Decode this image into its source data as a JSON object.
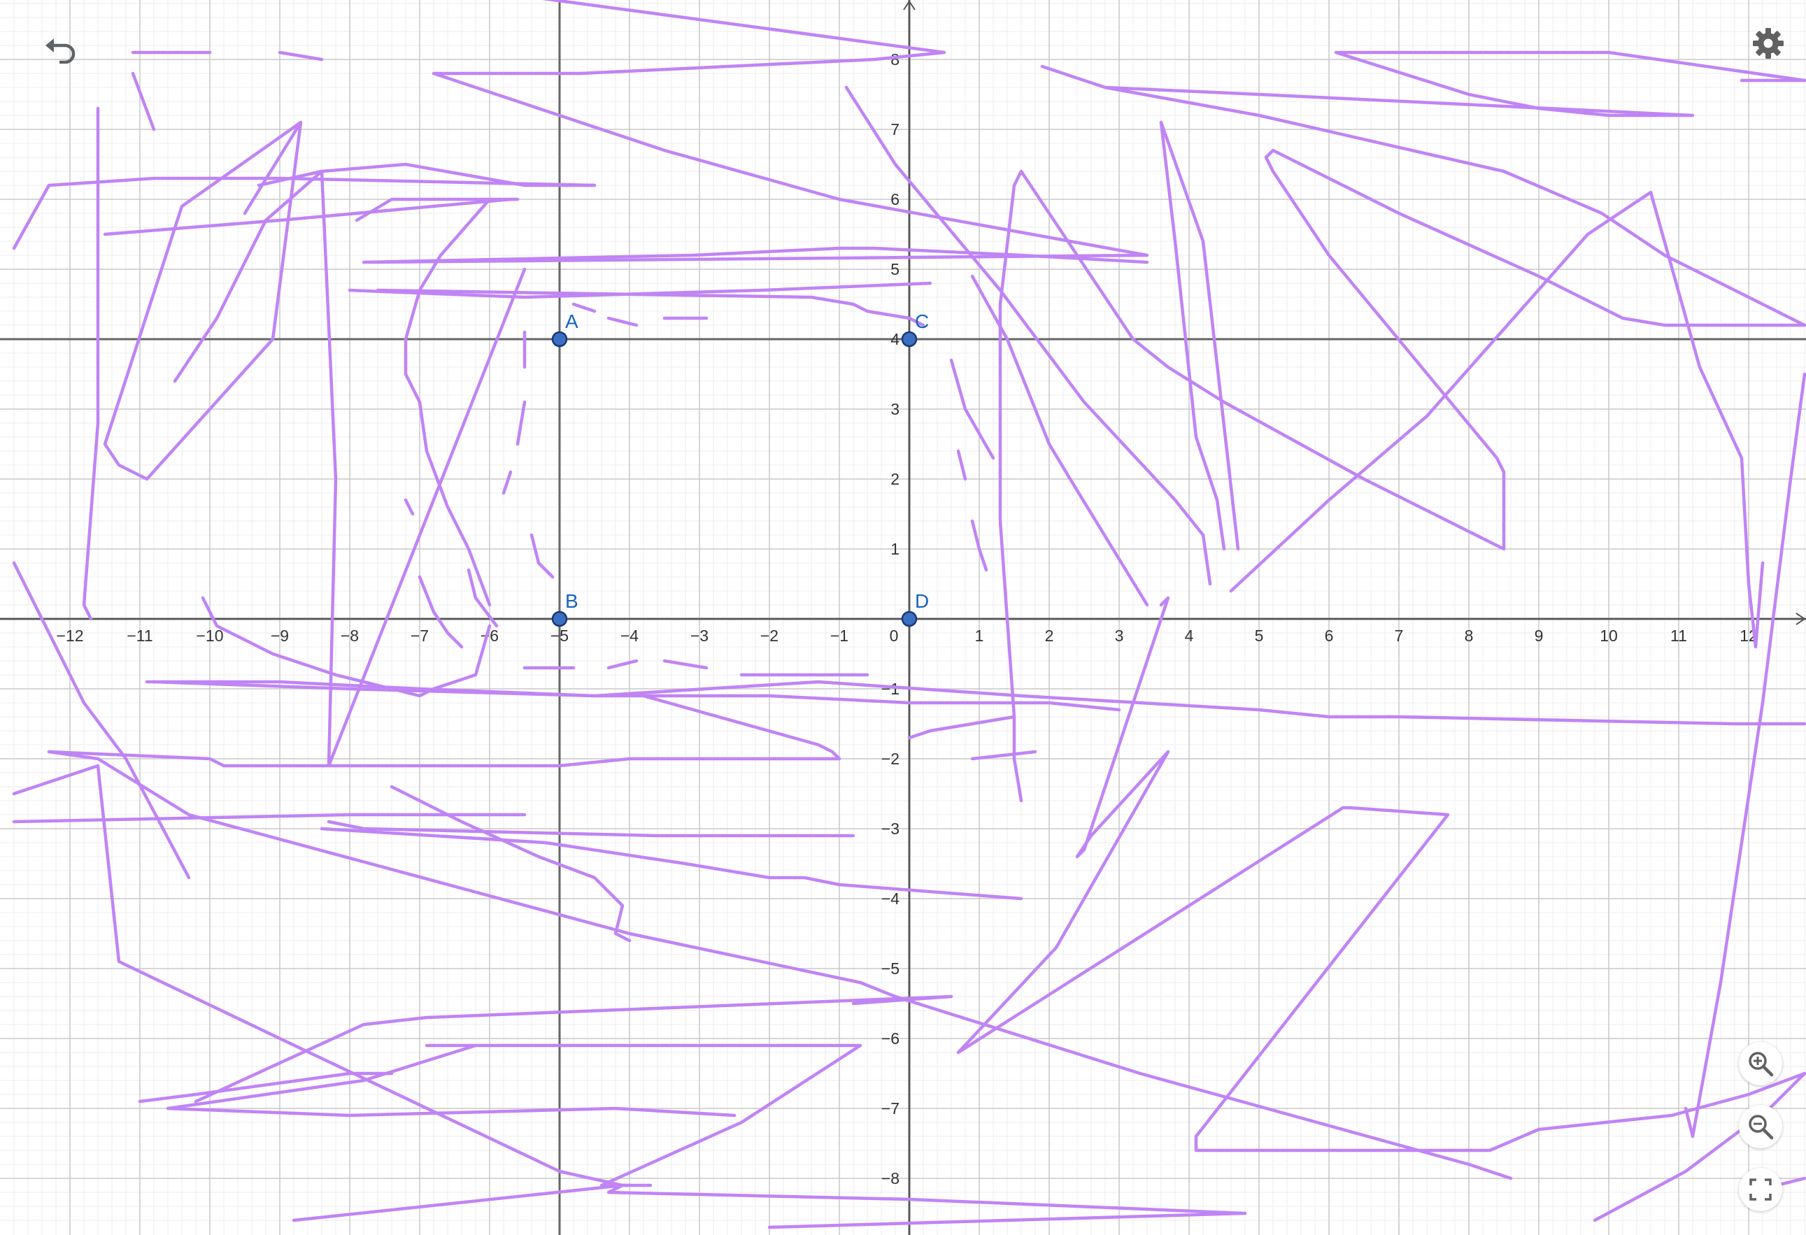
{
  "app": {
    "name": "Graphing calculator",
    "controls": {
      "undo": "undo-icon",
      "settings": "gear-icon",
      "zoom_in": "zoom-in-icon",
      "zoom_out": "zoom-out-icon",
      "fullscreen": "fullscreen-icon"
    }
  },
  "graph": {
    "x_range": [
      -12.8,
      12.8
    ],
    "y_range": [
      -8.6,
      8.9
    ],
    "grid": true,
    "minor_grid": true,
    "x_tick_labels": [
      "−12",
      "−11",
      "−10",
      "−9",
      "−8",
      "−7",
      "−6",
      "−5",
      "−4",
      "−3",
      "−2",
      "−1",
      "0",
      "1",
      "2",
      "3",
      "4",
      "5",
      "6",
      "7",
      "8",
      "9",
      "10",
      "11",
      "12"
    ],
    "y_tick_labels": [
      "8",
      "7",
      "6",
      "5",
      "4",
      "3",
      "2",
      "1",
      "−1",
      "−2",
      "−3",
      "−4",
      "−5",
      "−6",
      "−7",
      "−8"
    ],
    "colors": {
      "stroke": "#c084f5",
      "point": "#1565c0",
      "axis": "#555555"
    },
    "points": [
      {
        "label": "A",
        "x": -5,
        "y": 4
      },
      {
        "label": "B",
        "x": -5,
        "y": 0
      },
      {
        "label": "C",
        "x": 0,
        "y": 4
      },
      {
        "label": "D",
        "x": 0,
        "y": 0
      }
    ],
    "auxiliary_lines": [
      {
        "kind": "vertical",
        "x": -5
      },
      {
        "kind": "vertical",
        "x": 0
      },
      {
        "kind": "horizontal",
        "y": 4
      },
      {
        "kind": "horizontal",
        "y": 0
      }
    ],
    "strokes": [
      [
        [
          -6.2,
          9
        ],
        [
          0.5,
          8.1
        ],
        [
          -0.5,
          8
        ],
        [
          -4.7,
          7.8
        ],
        [
          -6.8,
          7.8
        ],
        [
          -3.5,
          6.7
        ],
        [
          -1,
          6
        ],
        [
          3.4,
          5.2
        ],
        [
          -7.7,
          5.1
        ]
      ],
      [
        [
          -11.1,
          8.1
        ],
        [
          -10,
          8.1
        ]
      ],
      [
        [
          -11.1,
          7.8
        ],
        [
          -10.8,
          7
        ]
      ],
      [
        [
          -9,
          8.1
        ],
        [
          -8.4,
          8
        ]
      ],
      [
        [
          -12.8,
          5.3
        ],
        [
          -12.3,
          6.2
        ],
        [
          -10.8,
          6.3
        ],
        [
          -9,
          6.3
        ],
        [
          -4.5,
          6.2
        ]
      ],
      [
        [
          -11.5,
          5.5
        ],
        [
          -9,
          5.7
        ],
        [
          -5.7,
          6
        ]
      ],
      [
        [
          -9.5,
          5.8
        ],
        [
          -8.7,
          7.1
        ],
        [
          -10.4,
          5.9
        ],
        [
          -11.5,
          2.5
        ],
        [
          -11.3,
          2.2
        ],
        [
          -10.9,
          2
        ],
        [
          -9.1,
          4
        ],
        [
          -8.7,
          7.1
        ]
      ],
      [
        [
          -11.6,
          7.3
        ],
        [
          -11.6,
          3.2
        ],
        [
          -11.6,
          2.8
        ],
        [
          -11.8,
          0.2
        ],
        [
          -11.7,
          0
        ]
      ],
      [
        [
          -9.3,
          6.2
        ],
        [
          -8.4,
          6.4
        ],
        [
          -7.2,
          6.5
        ],
        [
          -5.5,
          6.2
        ],
        [
          -4.5,
          6.2
        ]
      ],
      [
        [
          -12.8,
          0.8
        ],
        [
          -11.8,
          -1.2
        ],
        [
          -11.2,
          -2
        ],
        [
          -10.3,
          -3.7
        ]
      ],
      [
        [
          -10.5,
          3.4
        ],
        [
          -9.9,
          4.3
        ],
        [
          -9.2,
          5.7
        ],
        [
          -8.4,
          6.4
        ],
        [
          -8.2,
          2
        ],
        [
          -8.3,
          -2.1
        ],
        [
          -5.5,
          5
        ]
      ],
      [
        [
          -10.1,
          0.3
        ],
        [
          -9.9,
          -0.1
        ],
        [
          -9.1,
          -0.5
        ],
        [
          -8.2,
          -0.8
        ],
        [
          -7.4,
          -1
        ],
        [
          -7,
          -1.1
        ],
        [
          -6.8,
          -1
        ],
        [
          -6.5,
          -0.9
        ],
        [
          -6.2,
          -0.8
        ],
        [
          -6,
          -0.1
        ]
      ],
      [
        [
          -7.9,
          5.7
        ],
        [
          -7.4,
          6
        ],
        [
          -5.6,
          6
        ]
      ],
      [
        [
          -7.8,
          5.1
        ],
        [
          -3.1,
          5.2
        ],
        [
          -1,
          5.3
        ],
        [
          -0.5,
          5.3
        ],
        [
          1.6,
          5.2
        ],
        [
          3.4,
          5.1
        ]
      ],
      [
        [
          -8,
          4.7
        ],
        [
          -5.5,
          4.6
        ],
        [
          -2.1,
          4.7
        ],
        [
          0.3,
          4.8
        ]
      ],
      [
        [
          -7.6,
          4.7
        ],
        [
          -1.4,
          4.6
        ],
        [
          -0.8,
          4.5
        ],
        [
          -0.6,
          4.4
        ],
        [
          0,
          4.3
        ],
        [
          0.2,
          4.2
        ]
      ],
      [
        [
          -6,
          6
        ],
        [
          -6.7,
          5.2
        ],
        [
          -7,
          4.7
        ],
        [
          -7.2,
          4
        ],
        [
          -7.2,
          3.5
        ],
        [
          -7,
          3.1
        ],
        [
          -6.9,
          2.4
        ],
        [
          -6.6,
          1.6
        ],
        [
          -6.3,
          1
        ],
        [
          -6,
          0.2
        ]
      ],
      [
        [
          -5.5,
          4.1
        ],
        [
          -5.5,
          3.6
        ]
      ],
      [
        [
          -5.5,
          3.1
        ],
        [
          -5.6,
          2.5
        ]
      ],
      [
        [
          -5.7,
          2.1
        ],
        [
          -5.8,
          1.8
        ]
      ],
      [
        [
          -5.4,
          1.2
        ],
        [
          -5.3,
          0.8
        ],
        [
          -5.1,
          0.6
        ]
      ],
      [
        [
          -7.2,
          1.7
        ],
        [
          -7.1,
          1.5
        ]
      ],
      [
        [
          -7,
          0.6
        ],
        [
          -6.8,
          0.1
        ],
        [
          -6.6,
          -0.2
        ],
        [
          -6.4,
          -0.4
        ]
      ],
      [
        [
          -6.3,
          0.7
        ],
        [
          -6.2,
          0.3
        ],
        [
          -5.9,
          -0.1
        ]
      ],
      [
        [
          -4.3,
          4.3
        ],
        [
          -3.9,
          4.2
        ]
      ],
      [
        [
          -3.5,
          4.3
        ],
        [
          -2.9,
          4.3
        ]
      ],
      [
        [
          -4.8,
          4.5
        ],
        [
          -4.5,
          4.4
        ]
      ],
      [
        [
          -5.5,
          -0.7
        ],
        [
          -4.8,
          -0.7
        ]
      ],
      [
        [
          -4.3,
          -0.7
        ],
        [
          -3.9,
          -0.6
        ]
      ],
      [
        [
          -3.5,
          -0.6
        ],
        [
          -2.9,
          -0.7
        ]
      ],
      [
        [
          -2.4,
          -0.8
        ],
        [
          -0.6,
          -0.8
        ]
      ],
      [
        [
          -10.9,
          -0.9
        ],
        [
          -9,
          -0.9
        ],
        [
          -7,
          -1
        ],
        [
          -4.5,
          -1.1
        ],
        [
          -1.3,
          -0.9
        ],
        [
          1.6,
          -1.1
        ],
        [
          5,
          -1.3
        ],
        [
          6,
          -1.4
        ],
        [
          7,
          -1.4
        ],
        [
          11.8,
          -1.5
        ],
        [
          12.8,
          -1.5
        ]
      ],
      [
        [
          -10.8,
          -0.9
        ],
        [
          -8,
          -1
        ],
        [
          -4.5,
          -1.1
        ],
        [
          -2,
          -1.1
        ],
        [
          0,
          -1.2
        ],
        [
          2,
          -1.2
        ],
        [
          3,
          -1.3
        ]
      ],
      [
        [
          -3.8,
          -1.1
        ],
        [
          -1.3,
          -1.8
        ],
        [
          -1.1,
          -1.9
        ],
        [
          -1,
          -2
        ],
        [
          -4,
          -2
        ],
        [
          -5,
          -2.1
        ],
        [
          -9.8,
          -2.1
        ],
        [
          -10,
          -2
        ],
        [
          -12.3,
          -1.9
        ],
        [
          -11.6,
          -2
        ],
        [
          -10.3,
          -2.8
        ],
        [
          -4,
          -4.5
        ],
        [
          -0.7,
          -5.2
        ],
        [
          -0.2,
          -5.4
        ],
        [
          3.3,
          -6.5
        ],
        [
          8,
          -7.8
        ],
        [
          8.6,
          -8
        ]
      ],
      [
        [
          -12.8,
          -2.5
        ],
        [
          -11.6,
          -2.1
        ],
        [
          -11.3,
          -4.9
        ],
        [
          -9,
          -6
        ],
        [
          -5,
          -7.9
        ],
        [
          -4.1,
          -8.1
        ],
        [
          -3.7,
          -8.1
        ]
      ],
      [
        [
          -12.8,
          -2.9
        ],
        [
          -8,
          -2.8
        ],
        [
          -5.5,
          -2.8
        ]
      ],
      [
        [
          -8.3,
          -2.9
        ],
        [
          -7.8,
          -3
        ],
        [
          -3.6,
          -3.1
        ],
        [
          -3,
          -3.1
        ],
        [
          -0.8,
          -3.1
        ]
      ],
      [
        [
          -7.4,
          -2.4
        ],
        [
          -6.4,
          -2.9
        ],
        [
          -5.3,
          -3.4
        ],
        [
          -4.5,
          -3.7
        ],
        [
          -4.1,
          -4.1
        ],
        [
          -4.2,
          -4.5
        ],
        [
          -4,
          -4.6
        ]
      ],
      [
        [
          -8.4,
          -3
        ],
        [
          -5.2,
          -3.2
        ],
        [
          -3.2,
          -3.5
        ],
        [
          -2,
          -3.7
        ],
        [
          -1.5,
          -3.7
        ],
        [
          -1,
          -3.8
        ],
        [
          1.6,
          -4
        ]
      ],
      [
        [
          -0.8,
          -5.5
        ],
        [
          0.6,
          -5.4
        ]
      ],
      [
        [
          -11,
          -6.9
        ],
        [
          -10.2,
          -6.8
        ],
        [
          -8,
          -6.5
        ],
        [
          -7.4,
          -6.5
        ]
      ],
      [
        [
          -10.6,
          -7
        ],
        [
          -8,
          -7.1
        ],
        [
          -4.2,
          -7
        ],
        [
          -2.5,
          -7.1
        ]
      ],
      [
        [
          -10.2,
          -6.9
        ],
        [
          -7.8,
          -5.8
        ],
        [
          -6.9,
          -5.7
        ],
        [
          0.6,
          -5.4
        ]
      ],
      [
        [
          -6.9,
          -6.1
        ],
        [
          -0.7,
          -6.1
        ],
        [
          -2.4,
          -7.2
        ],
        [
          -4.4,
          -8.1
        ],
        [
          -4,
          -8.1
        ]
      ],
      [
        [
          -8.8,
          -8.6
        ],
        [
          -4.1,
          -8.1
        ],
        [
          -4.3,
          -8.2
        ],
        [
          0,
          -8.3
        ],
        [
          4.8,
          -8.5
        ],
        [
          -2,
          -8.7
        ]
      ],
      [
        [
          -10.6,
          -7
        ],
        [
          -7.8,
          -6.6
        ],
        [
          -6.2,
          -6.1
        ]
      ],
      [
        [
          -0.9,
          7.6
        ],
        [
          -0.2,
          6.5
        ],
        [
          1.3,
          4.7
        ],
        [
          2.5,
          3.1
        ],
        [
          3.8,
          1.7
        ],
        [
          4.2,
          1.2
        ],
        [
          4.3,
          0.5
        ]
      ],
      [
        [
          0.9,
          4.9
        ],
        [
          1.4,
          4
        ],
        [
          2,
          2.5
        ],
        [
          2.3,
          2
        ],
        [
          3.4,
          0.2
        ]
      ],
      [
        [
          0.6,
          3.7
        ],
        [
          0.8,
          3
        ],
        [
          1.2,
          2.3
        ]
      ],
      [
        [
          0.7,
          2.4
        ],
        [
          0.8,
          2
        ]
      ],
      [
        [
          0.9,
          1.4
        ],
        [
          1,
          1
        ],
        [
          1.1,
          0.7
        ]
      ],
      [
        [
          1.6,
          -2.6
        ],
        [
          1.5,
          -2
        ],
        [
          1.5,
          -1.4
        ],
        [
          1.3,
          1.4
        ],
        [
          1.3,
          4.5
        ],
        [
          1.5,
          6.2
        ],
        [
          1.6,
          6.4
        ],
        [
          2.2,
          5.5
        ],
        [
          3.2,
          4
        ],
        [
          3.7,
          3.6
        ],
        [
          4.5,
          3.1
        ],
        [
          6.5,
          2
        ],
        [
          8.5,
          1
        ],
        [
          8.5,
          2.1
        ],
        [
          8.4,
          2.3
        ],
        [
          6,
          5.2
        ],
        [
          5.2,
          6.4
        ],
        [
          5.1,
          6.6
        ],
        [
          5.2,
          6.7
        ],
        [
          7,
          5.8
        ],
        [
          9,
          4.9
        ],
        [
          10.2,
          4.3
        ],
        [
          10.8,
          4.2
        ],
        [
          12.8,
          4.2
        ]
      ],
      [
        [
          3.6,
          7.1
        ],
        [
          4.2,
          5.4
        ],
        [
          4.7,
          1
        ]
      ],
      [
        [
          3.6,
          7.1
        ],
        [
          3.8,
          5.4
        ],
        [
          4.1,
          2.6
        ],
        [
          4.4,
          1.7
        ],
        [
          4.5,
          1
        ]
      ],
      [
        [
          3.6,
          0.2
        ],
        [
          3.7,
          0.3
        ],
        [
          2.5,
          -3.3
        ],
        [
          2.4,
          -3.4
        ],
        [
          2.6,
          -3.1
        ],
        [
          3.7,
          -1.9
        ]
      ],
      [
        [
          1.8,
          -1.9
        ],
        [
          0.9,
          -2
        ]
      ],
      [
        [
          0,
          -1.7
        ],
        [
          0.3,
          -1.6
        ],
        [
          1.5,
          -1.4
        ]
      ],
      [
        [
          1.9,
          7.9
        ],
        [
          2.8,
          7.6
        ],
        [
          5,
          7.5
        ],
        [
          11.2,
          7.2
        ],
        [
          10,
          7.2
        ],
        [
          9,
          7.3
        ],
        [
          8,
          7.5
        ],
        [
          6.1,
          8.1
        ],
        [
          10,
          8.1
        ],
        [
          12.8,
          7.7
        ]
      ],
      [
        [
          2.8,
          7.6
        ],
        [
          5,
          7.2
        ],
        [
          8.5,
          6.4
        ],
        [
          9.9,
          5.8
        ],
        [
          10.8,
          5.2
        ],
        [
          12.8,
          4.2
        ]
      ],
      [
        [
          4.6,
          0.4
        ],
        [
          6,
          1.7
        ],
        [
          7.4,
          2.9
        ],
        [
          9.7,
          5.5
        ],
        [
          10.6,
          6.1
        ],
        [
          11.3,
          3.6
        ],
        [
          11.9,
          2.3
        ],
        [
          12,
          0.5
        ],
        [
          12.1,
          -0.4
        ],
        [
          12.2,
          0.8
        ]
      ],
      [
        [
          12.8,
          3.5
        ],
        [
          12.6,
          2
        ],
        [
          12.2,
          -1.2
        ],
        [
          11.6,
          -5.2
        ],
        [
          11.2,
          -7.4
        ],
        [
          11.1,
          -7
        ]
      ],
      [
        [
          0.7,
          -6.2
        ],
        [
          2.1,
          -4.7
        ],
        [
          3.7,
          -1.9
        ]
      ],
      [
        [
          0.7,
          -6.2
        ],
        [
          6.2,
          -2.7
        ],
        [
          6.3,
          -2.7
        ],
        [
          7.7,
          -2.8
        ],
        [
          4.1,
          -7.4
        ],
        [
          4.1,
          -7.6
        ],
        [
          8.3,
          -7.6
        ],
        [
          9,
          -7.3
        ],
        [
          10.9,
          -7.1
        ],
        [
          12,
          -6.8
        ],
        [
          12.8,
          -6.5
        ]
      ],
      [
        [
          9.8,
          -8.6
        ],
        [
          11.1,
          -7.9
        ],
        [
          12.3,
          -7
        ],
        [
          12.8,
          -6.5
        ]
      ],
      [
        [
          12,
          -8.2
        ],
        [
          12.8,
          -8
        ]
      ],
      [
        [
          11.9,
          7.7
        ],
        [
          12.8,
          7.7
        ]
      ]
    ]
  }
}
